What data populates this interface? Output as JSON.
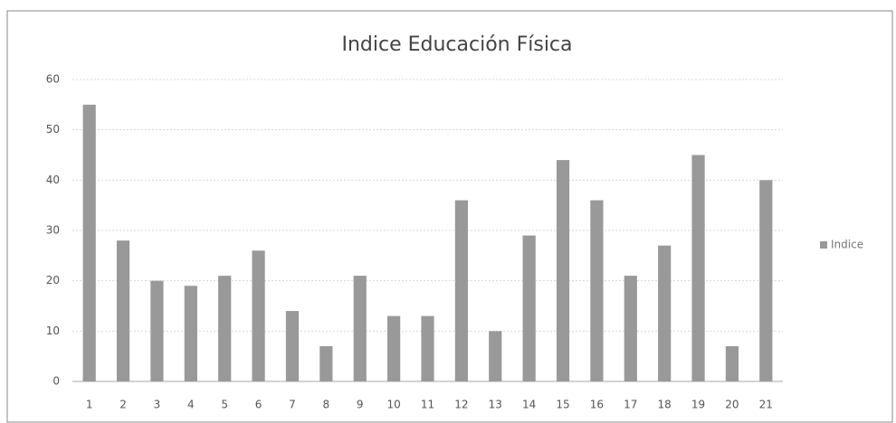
{
  "chart_data": {
    "type": "bar",
    "title": "Indice Educación Física",
    "categories": [
      "1",
      "2",
      "3",
      "4",
      "5",
      "6",
      "7",
      "8",
      "9",
      "10",
      "11",
      "12",
      "13",
      "14",
      "15",
      "16",
      "17",
      "18",
      "19",
      "20",
      "21"
    ],
    "series": [
      {
        "name": "Indice",
        "color": "#999999",
        "values": [
          55,
          28,
          20,
          19,
          21,
          26,
          14,
          7,
          21,
          13,
          13,
          36,
          10,
          29,
          44,
          36,
          21,
          27,
          45,
          7,
          40
        ]
      }
    ],
    "ylim": [
      0,
      60
    ],
    "yticks": [
      0,
      10,
      20,
      30,
      40,
      50,
      60
    ],
    "grid": true,
    "legend": "right"
  }
}
